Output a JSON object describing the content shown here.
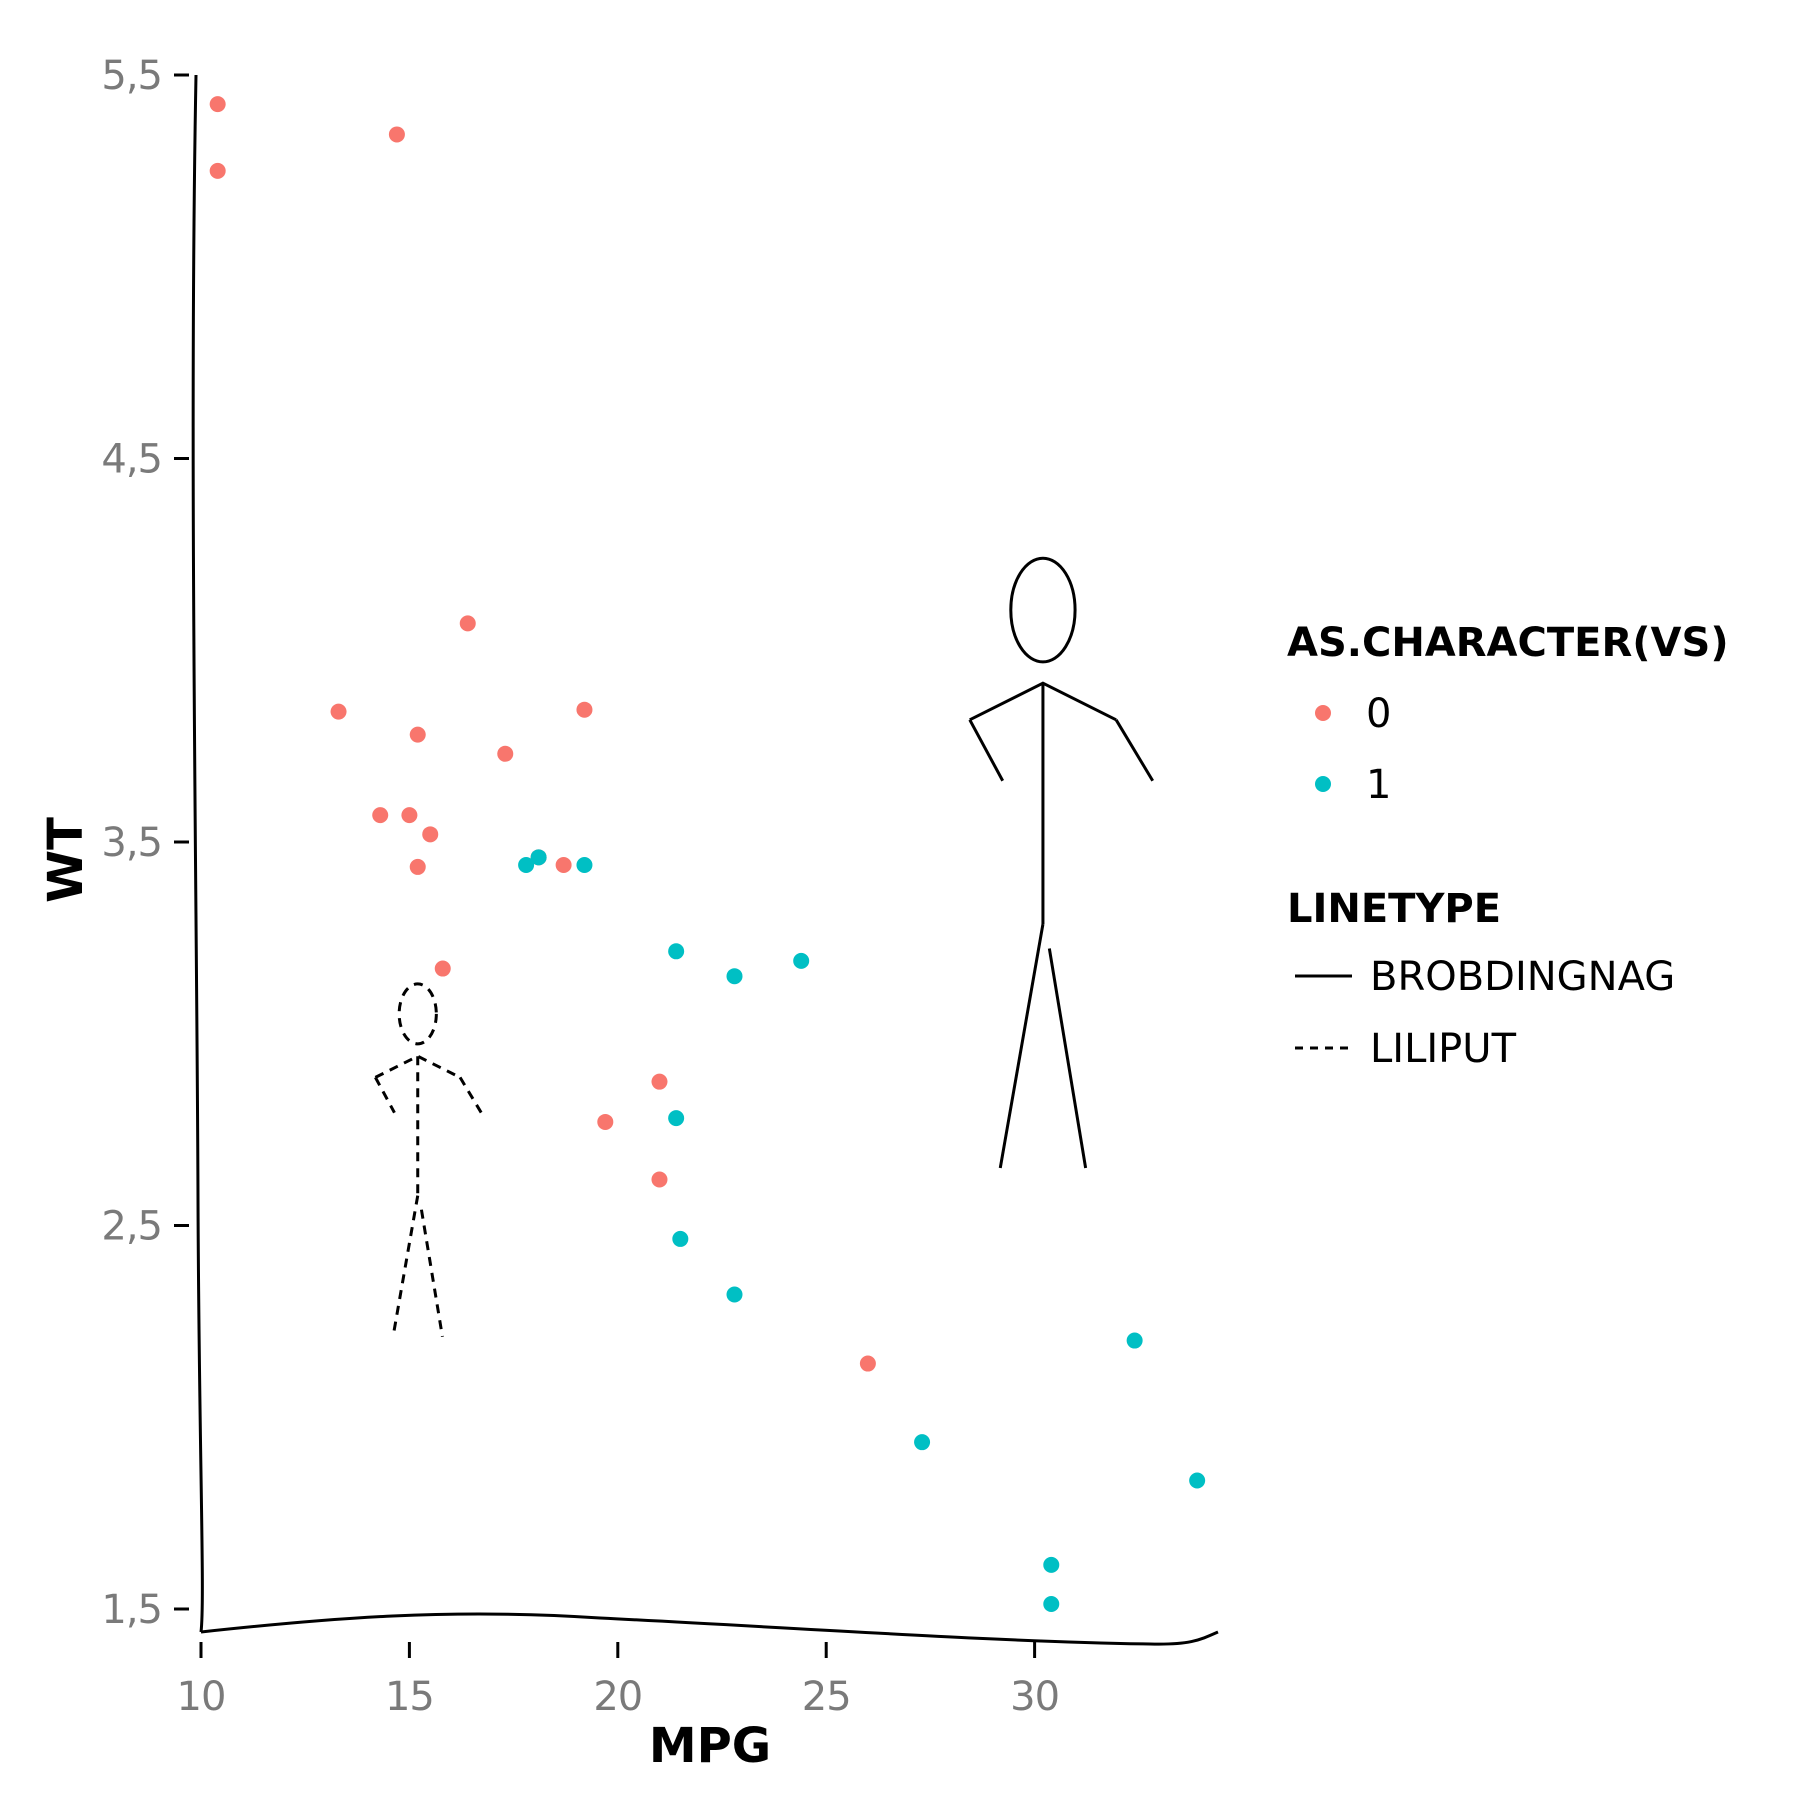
{
  "chart_data": {
    "type": "scatter",
    "xlabel": "MPG",
    "ylabel": "WT",
    "xlim": [
      10,
      34.4
    ],
    "ylim": [
      1.44,
      5.5
    ],
    "x_ticks": [
      10,
      15,
      20,
      25,
      30
    ],
    "x_tick_labels": [
      "10",
      "15",
      "20",
      "25",
      "30"
    ],
    "y_ticks": [
      1.5,
      2.5,
      3.5,
      4.5,
      5.5
    ],
    "y_tick_labels": [
      "1,5",
      "2,5",
      "3,5",
      "4,5",
      "5,5"
    ],
    "grid": false,
    "legend_placement": "right",
    "color_legend": {
      "title": "AS.CHARACTER(VS)",
      "entries": [
        {
          "label": "0",
          "color": "#f8766d"
        },
        {
          "label": "1",
          "color": "#00bfc4"
        }
      ]
    },
    "linetype_legend": {
      "title": "LINETYPE",
      "entries": [
        {
          "label": "BROBDINGNAG",
          "style": "solid"
        },
        {
          "label": "LILIPUT",
          "style": "dashed"
        }
      ]
    },
    "series": [
      {
        "name": "0",
        "color": "#f8766d",
        "points": [
          [
            21.0,
            2.62
          ],
          [
            21.0,
            2.875
          ],
          [
            18.7,
            3.44
          ],
          [
            18.1,
            3.46
          ],
          [
            14.3,
            3.57
          ],
          [
            16.4,
            4.07
          ],
          [
            17.3,
            3.73
          ],
          [
            15.2,
            3.78
          ],
          [
            10.4,
            5.25
          ],
          [
            10.4,
            5.424
          ],
          [
            14.7,
            5.345
          ],
          [
            15.5,
            3.52
          ],
          [
            15.2,
            3.435
          ],
          [
            13.3,
            3.84
          ],
          [
            19.2,
            3.845
          ],
          [
            26.0,
            2.14
          ],
          [
            15.8,
            3.17
          ],
          [
            19.7,
            2.77
          ],
          [
            15.0,
            3.57
          ]
        ]
      },
      {
        "name": "1",
        "color": "#00bfc4",
        "points": [
          [
            22.8,
            2.32
          ],
          [
            21.4,
            3.215
          ],
          [
            18.1,
            3.46
          ],
          [
            24.4,
            3.19
          ],
          [
            22.8,
            3.15
          ],
          [
            19.2,
            3.44
          ],
          [
            17.8,
            3.44
          ],
          [
            32.4,
            2.2
          ],
          [
            30.4,
            1.615
          ],
          [
            33.9,
            1.835
          ],
          [
            21.5,
            2.465
          ],
          [
            27.3,
            1.935
          ],
          [
            30.4,
            1.513
          ],
          [
            21.4,
            2.78
          ]
        ]
      }
    ],
    "annotations": [
      {
        "type": "stick-figure",
        "linetype": "dashed",
        "center_x": 15.2,
        "top_y": 3.13,
        "bottom_y": 2.21
      },
      {
        "type": "stick-figure",
        "linetype": "solid",
        "center_x": 30.2,
        "top_y": 4.24,
        "bottom_y": 2.65
      }
    ]
  }
}
